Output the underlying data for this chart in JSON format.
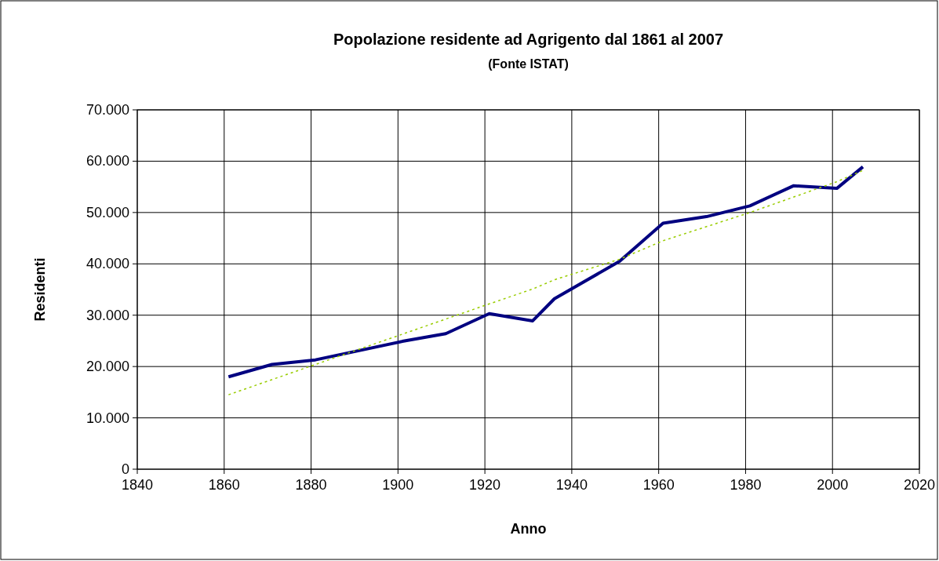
{
  "chart_data": {
    "type": "line",
    "title": "Popolazione residente ad Agrigento dal 1861 al 2007",
    "subtitle": "(Fonte ISTAT)",
    "xlabel": "Anno",
    "ylabel": "Residenti",
    "xlim": [
      1840,
      2020
    ],
    "xticks": [
      1840,
      1860,
      1880,
      1900,
      1920,
      1940,
      1960,
      1980,
      2000,
      2020
    ],
    "ylim": [
      0,
      70000
    ],
    "yticks": [
      {
        "value": 0,
        "label": "0"
      },
      {
        "value": 10000,
        "label": "10.000"
      },
      {
        "value": 20000,
        "label": "20.000"
      },
      {
        "value": 30000,
        "label": "30.000"
      },
      {
        "value": 40000,
        "label": "40.000"
      },
      {
        "value": 50000,
        "label": "50.000"
      },
      {
        "value": 60000,
        "label": "60.000"
      },
      {
        "value": 70000,
        "label": "70.000"
      }
    ],
    "grid": true,
    "marker": "none",
    "series": [
      {
        "color": "#000080",
        "line_style": "solid",
        "x": [
          1861,
          1871,
          1881,
          1901,
          1911,
          1921,
          1931,
          1936,
          1951,
          1961,
          1971,
          1981,
          1991,
          2001,
          2007
        ],
        "values": [
          18000,
          20400,
          21300,
          24900,
          26400,
          30300,
          28900,
          33200,
          40500,
          47900,
          49200,
          51300,
          55200,
          54700,
          58900
        ]
      },
      {
        "color": "#99cc00",
        "line_style": "dotted",
        "x": [
          1861,
          1881,
          1901,
          1921,
          1931,
          1936,
          1951,
          1961,
          1981,
          2001,
          2007
        ],
        "values": [
          14500,
          20400,
          26300,
          32200,
          35100,
          36900,
          40900,
          44500,
          50000,
          56000,
          58200
        ]
      }
    ]
  }
}
